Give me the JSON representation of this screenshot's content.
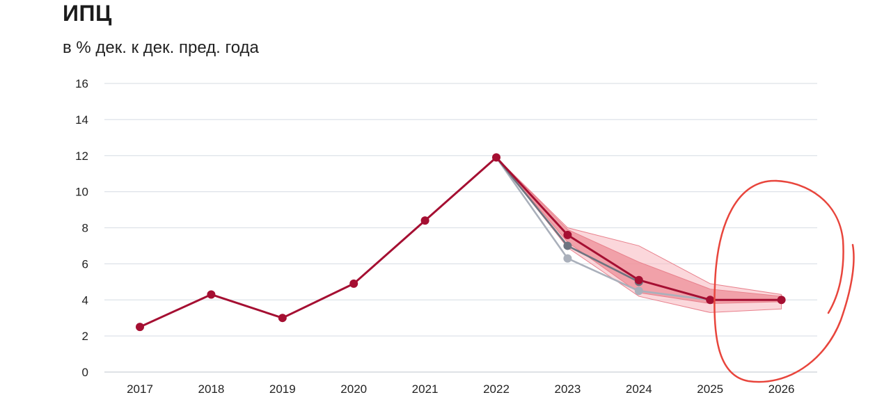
{
  "title": "ИПЦ",
  "subtitle": "в % дек. к дек. пред. года",
  "chart_data": {
    "type": "line",
    "title": "ИПЦ",
    "subtitle": "в % дек. к дек. пред. года",
    "categories": [
      "2017",
      "2018",
      "2019",
      "2020",
      "2021",
      "2022",
      "2023",
      "2024",
      "2025",
      "2026"
    ],
    "ylim": [
      0,
      16
    ],
    "yticks": [
      0,
      2,
      4,
      6,
      8,
      10,
      12,
      14,
      16
    ],
    "grid": true,
    "series": [
      {
        "values": [
          2.5,
          4.3,
          3.0,
          4.9,
          8.4,
          11.9,
          7.6,
          5.1,
          4.0,
          4.0
        ],
        "color": "#a50f32"
      },
      {
        "values": [
          null,
          null,
          null,
          null,
          null,
          11.9,
          7.0,
          5.0,
          null,
          null
        ],
        "color": "#6e7480"
      },
      {
        "values": [
          null,
          null,
          null,
          null,
          null,
          11.9,
          6.3,
          4.5,
          4.0,
          null
        ],
        "color": "#aab0bb"
      }
    ],
    "bands": [
      {
        "lower": [
          null,
          null,
          null,
          null,
          null,
          11.9,
          6.9,
          4.2,
          3.3,
          3.5
        ],
        "upper": [
          null,
          null,
          null,
          null,
          null,
          11.9,
          8.0,
          7.0,
          4.9,
          4.3
        ],
        "color": "#f7b7be"
      },
      {
        "lower": [
          null,
          null,
          null,
          null,
          null,
          11.9,
          7.2,
          4.4,
          3.8,
          3.9
        ],
        "upper": [
          null,
          null,
          null,
          null,
          null,
          11.9,
          7.9,
          6.1,
          4.6,
          4.2
        ],
        "color": "#ee8f98"
      }
    ],
    "annotation": {
      "shape": "hand-drawn-circle",
      "color": "#e8453c",
      "around": [
        "2025",
        "2026"
      ]
    }
  }
}
